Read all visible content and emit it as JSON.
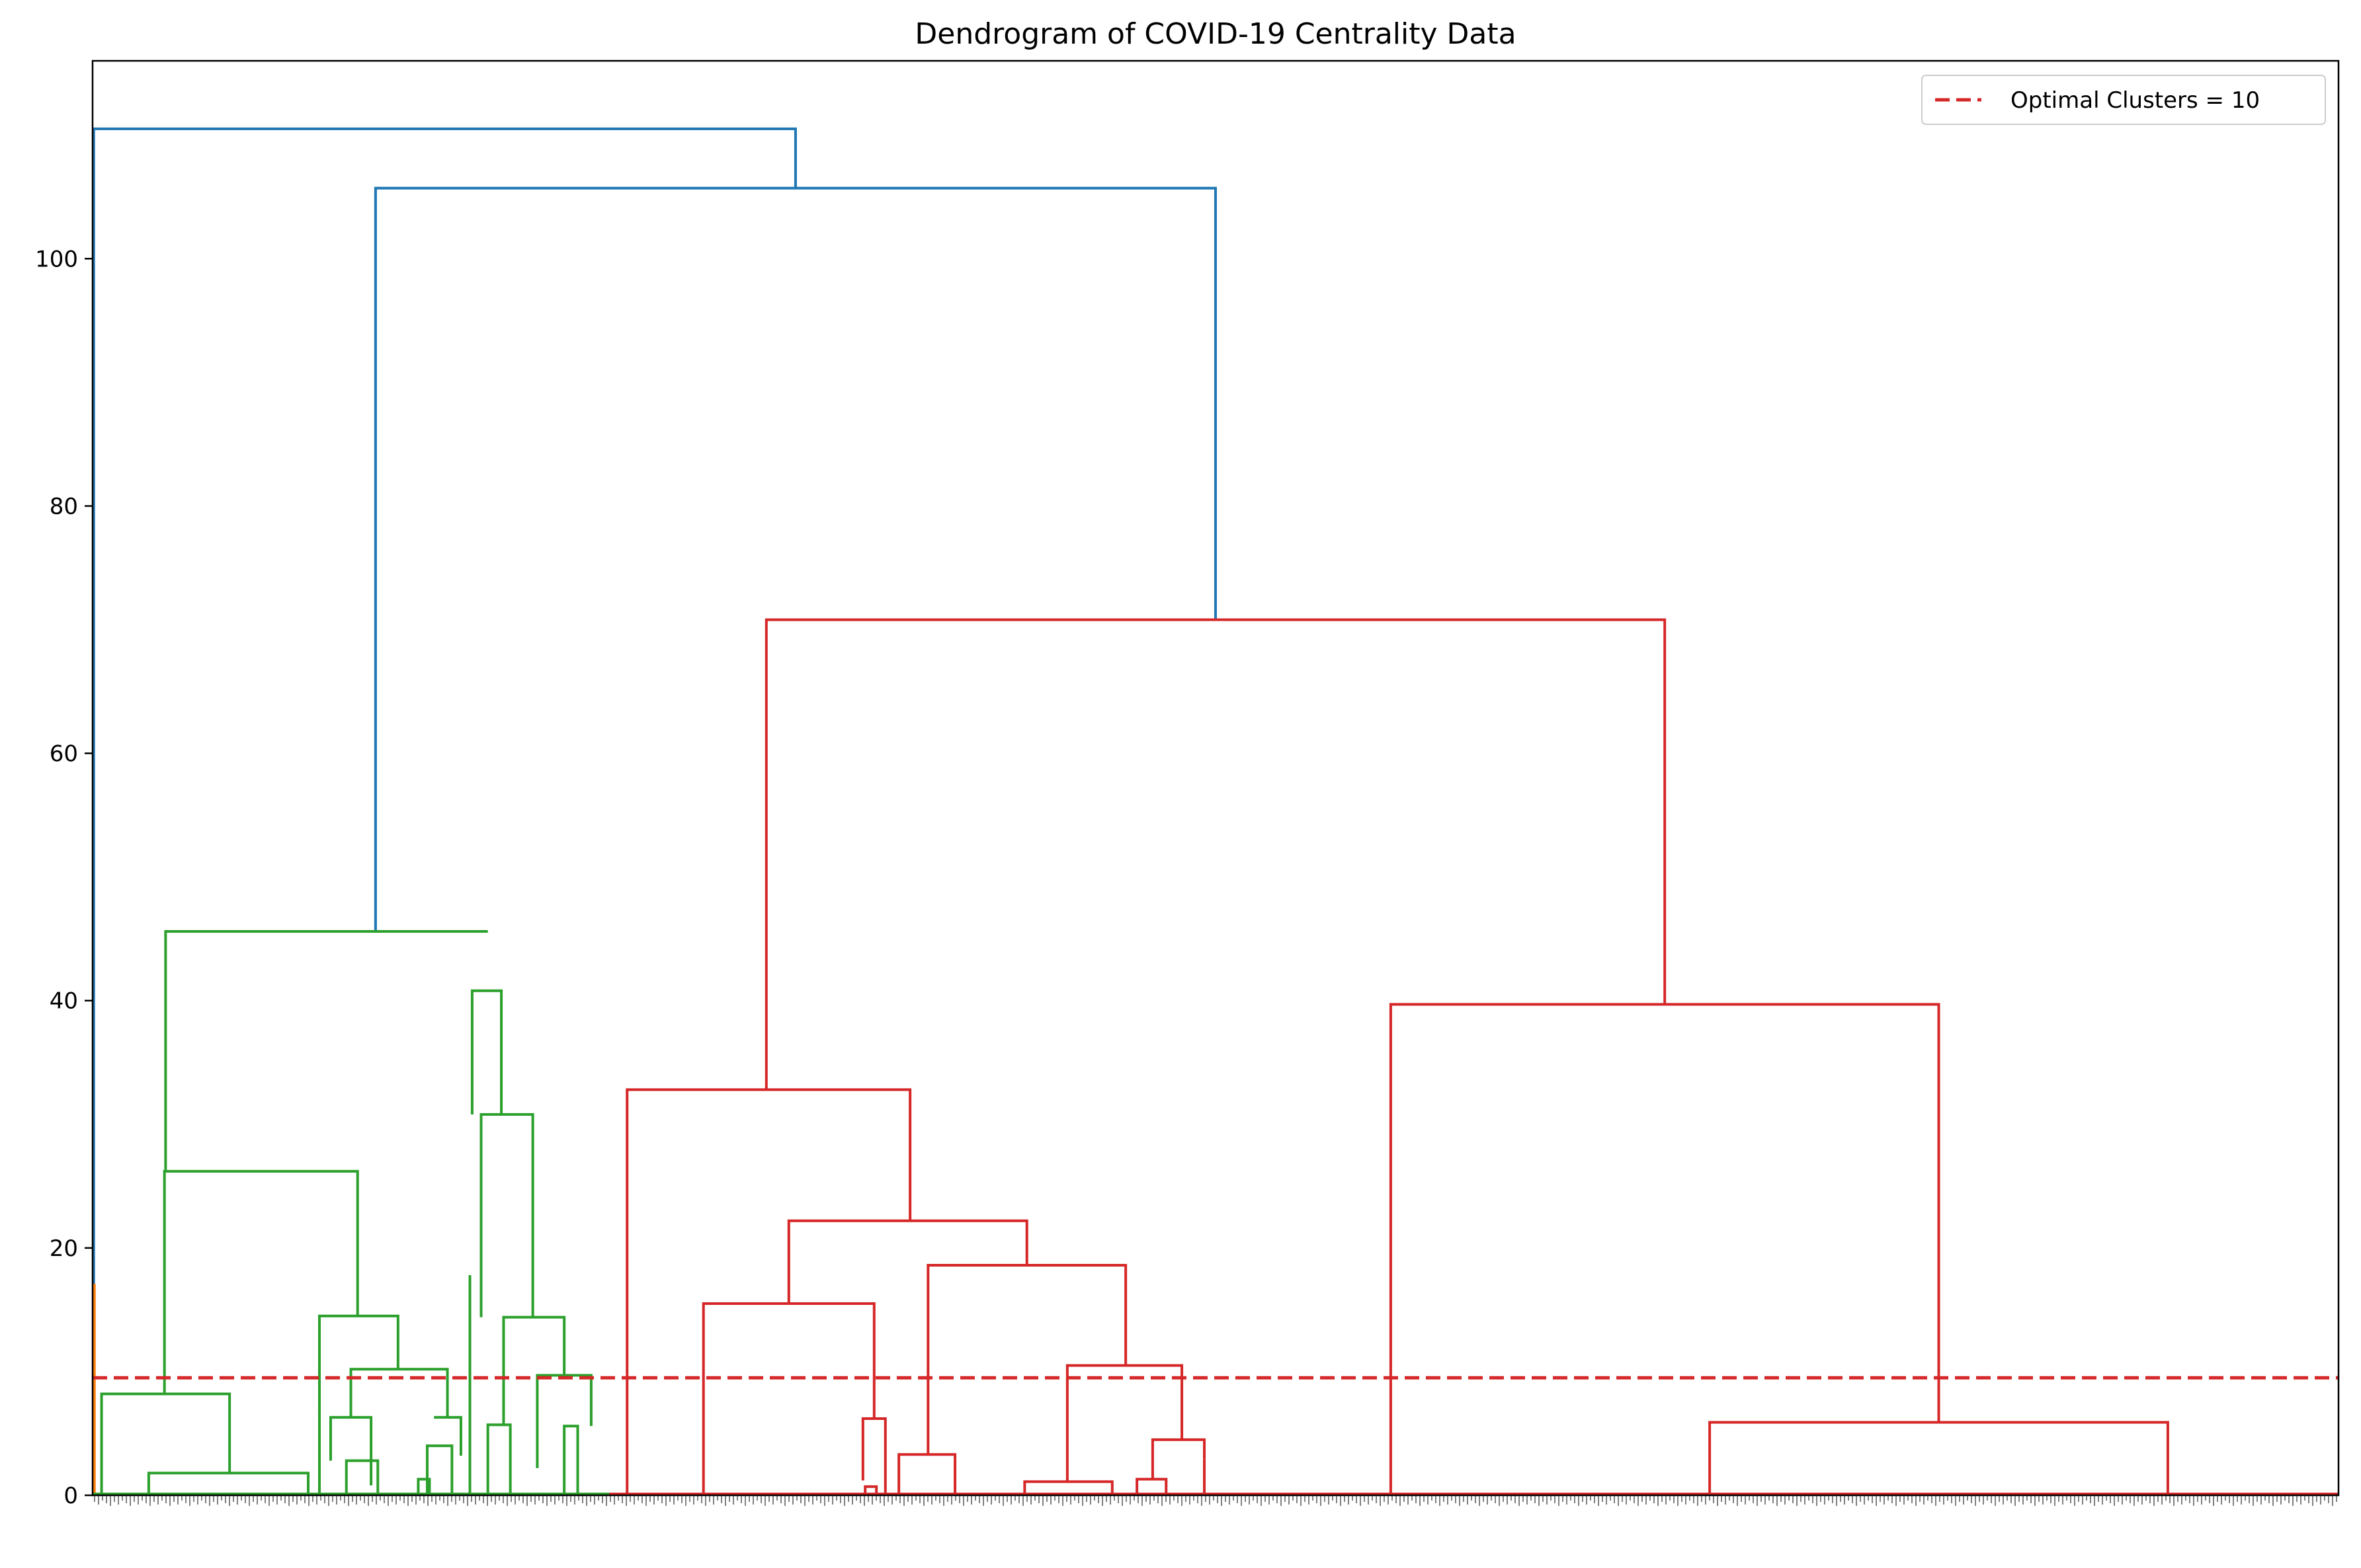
{
  "chart_data": {
    "type": "dendrogram",
    "title": "Dendrogram of COVID-19 Centrality Data",
    "xlabel": "",
    "ylabel": "",
    "ylim": [
      0,
      116
    ],
    "xlim": [
      0,
      1000
    ],
    "yticks": [
      0,
      20,
      40,
      60,
      80,
      100
    ],
    "grid": false,
    "legend_position": "top-right",
    "threshold": {
      "label": "Optimal Clusters = 10",
      "value": 9.5,
      "color": "#d62728",
      "style": "dashed"
    },
    "colors": {
      "blue": "#1f77b4",
      "orange": "#ff7f0e",
      "green": "#2ca02c",
      "red": "#d62728"
    },
    "links": [
      {
        "color": "blue",
        "x1": 0.5,
        "h1": 17,
        "x2": 313,
        "h2": 105.7,
        "h": 110.5
      },
      {
        "color": "blue",
        "x1": 126,
        "h1": 45.6,
        "x2": 500,
        "h2": 70.8,
        "h": 105.7
      },
      {
        "color": "orange",
        "x1": 0.3,
        "h1": 0,
        "x2": 0.8,
        "h2": 0,
        "h": 17
      },
      {
        "color": "green",
        "x1": 32.5,
        "h1": 26.2,
        "x2": 176,
        "h2": 45.6,
        "h": 45.6
      },
      {
        "color": "green",
        "x1": 32,
        "h1": 8.2,
        "x2": 118,
        "h2": 14.5,
        "h": 26.2
      },
      {
        "color": "green",
        "x1": 4,
        "h1": 0,
        "x2": 61,
        "h2": 1.8,
        "h": 8.2
      },
      {
        "color": "green",
        "x1": 25,
        "h1": 0,
        "x2": 96,
        "h2": 0,
        "h": 1.8
      },
      {
        "color": "green",
        "x1": 101,
        "h1": 6.8,
        "x2": 136,
        "h2": 10.2,
        "h": 14.5
      },
      {
        "color": "green",
        "x1": 115,
        "h1": 6.3,
        "x2": 158,
        "h2": 6.3,
        "h": 10.2
      },
      {
        "color": "green",
        "x1": 106,
        "h1": 2.8,
        "x2": 124,
        "h2": 0.8,
        "h": 6.3
      },
      {
        "color": "green",
        "x1": 152,
        "h1": 6.3,
        "x2": 164,
        "h2": 3.2,
        "h": 6.3
      },
      {
        "color": "green",
        "x1": 169,
        "h1": 30.8,
        "x2": 182,
        "h2": 30.8,
        "h": 40.8
      },
      {
        "color": "green",
        "x1": 173,
        "h1": 14.4,
        "x2": 196,
        "h2": 14.4,
        "h": 30.8
      },
      {
        "color": "green",
        "x1": 183,
        "h1": 5.6,
        "x2": 210,
        "h2": 9.7,
        "h": 14.4
      },
      {
        "color": "green",
        "x1": 198,
        "h1": 2.2,
        "x2": 222,
        "h2": 5.6,
        "h": 9.7
      },
      {
        "color": "green",
        "x1": 168,
        "h1": 0,
        "x2": 168,
        "h2": 0,
        "h": 17.8
      },
      {
        "color": "green",
        "x1": 101,
        "h1": 0,
        "x2": 101,
        "h2": 0,
        "h": 7
      },
      {
        "color": "green",
        "x1": 113,
        "h1": 0,
        "x2": 127,
        "h2": 0,
        "h": 2.8
      },
      {
        "color": "green",
        "x1": 145,
        "h1": 0,
        "x2": 150,
        "h2": 0,
        "h": 1.3
      },
      {
        "color": "green",
        "x1": 149,
        "h1": 0,
        "x2": 160,
        "h2": 0,
        "h": 4
      },
      {
        "color": "green",
        "x1": 176,
        "h1": 0,
        "x2": 186,
        "h2": 0,
        "h": 5.7
      },
      {
        "color": "green",
        "x1": 210,
        "h1": 0,
        "x2": 216,
        "h2": 0,
        "h": 5.6
      },
      {
        "color": "red",
        "x1": 238,
        "h1": 0,
        "x2": 364,
        "h2": 22.2,
        "h": 32.8
      },
      {
        "color": "red",
        "x1": 310,
        "h1": 15.5,
        "x2": 416,
        "h2": 18.6,
        "h": 22.2
      },
      {
        "color": "red",
        "x1": 272,
        "h1": 0,
        "x2": 348,
        "h2": 6.2,
        "h": 15.5
      },
      {
        "color": "red",
        "x1": 343,
        "h1": 1.2,
        "x2": 353,
        "h2": 0,
        "h": 6.2
      },
      {
        "color": "red",
        "x1": 372,
        "h1": 3.3,
        "x2": 460,
        "h2": 10.5,
        "h": 18.6
      },
      {
        "color": "red",
        "x1": 359,
        "h1": 0,
        "x2": 384,
        "h2": 0,
        "h": 3.3
      },
      {
        "color": "red",
        "x1": 434,
        "h1": 1.1,
        "x2": 485,
        "h2": 4.5,
        "h": 10.5
      },
      {
        "color": "red",
        "x1": 415,
        "h1": 0,
        "x2": 454,
        "h2": 0,
        "h": 1.1
      },
      {
        "color": "red",
        "x1": 472,
        "h1": 1.3,
        "x2": 495,
        "h2": 2.9,
        "h": 4.5
      },
      {
        "color": "red",
        "x1": 465,
        "h1": 0,
        "x2": 478,
        "h2": 0,
        "h": 1.3
      },
      {
        "color": "red",
        "x1": 495,
        "h1": 0,
        "x2": 495,
        "h2": 0,
        "h": 2.9
      },
      {
        "color": "red",
        "x1": 344,
        "h1": 0,
        "x2": 349,
        "h2": 0,
        "h": 0.7
      },
      {
        "color": "red",
        "x1": 300,
        "h1": 32.8,
        "x2": 700,
        "h2": 39.7,
        "h": 70.8
      },
      {
        "color": "red",
        "x1": 578,
        "h1": 0,
        "x2": 822,
        "h2": 5.9,
        "h": 39.7
      },
      {
        "color": "red",
        "x1": 720,
        "h1": 0,
        "x2": 924,
        "h2": 0,
        "h": 5.9
      }
    ]
  }
}
